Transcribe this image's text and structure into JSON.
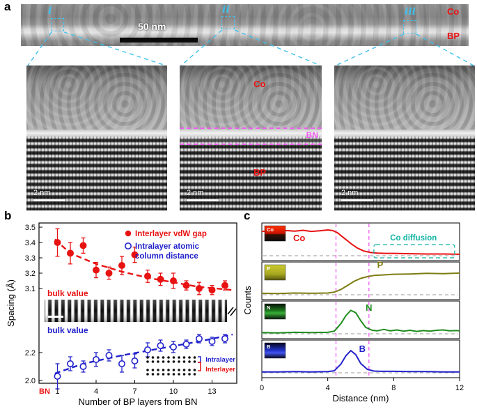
{
  "figure": {
    "panel_a_label": "a",
    "panel_b_label": "b",
    "panel_c_label": "c"
  },
  "panel_a": {
    "regions": {
      "r1": "i",
      "r2": "ii",
      "r3": "iii"
    },
    "strip": {
      "co": "Co",
      "bp": "BP",
      "scalebar": "50 nm"
    },
    "insets": {
      "scalebar": "2 nm",
      "mid_co": "Co",
      "mid_bn": "BN",
      "mid_bp": "BP"
    }
  },
  "chart_data": [
    {
      "type": "scatter",
      "title": "",
      "xlabel": "Number of BP layers from BN",
      "ylabel": "Spacing (Å)",
      "x_ticks": [
        1,
        4,
        7,
        10,
        13
      ],
      "x_extra_tick": "BN",
      "y_ticks_top": [
        3.5,
        3.4,
        3.3,
        3.2,
        3.1
      ],
      "y_ticks_bottom": [
        2.2,
        2.0
      ],
      "axis_break": true,
      "grid": false,
      "legend_position": "top-right",
      "series": [
        {
          "name": "Interlayer vdW gap",
          "color": "#e81212",
          "marker": "filled-circle",
          "x": [
            1,
            2,
            3,
            4,
            5,
            6,
            7,
            8,
            9,
            10,
            11,
            12,
            13,
            14
          ],
          "y": [
            3.4,
            3.33,
            3.38,
            3.22,
            3.2,
            3.25,
            3.32,
            3.18,
            3.16,
            3.15,
            3.12,
            3.1,
            3.09,
            3.12
          ],
          "yerr": [
            0.09,
            0.07,
            0.05,
            0.05,
            0.04,
            0.06,
            0.05,
            0.04,
            0.04,
            0.05,
            0.03,
            0.04,
            0.03,
            0.03
          ]
        },
        {
          "name": "Intralayer atomic column distance",
          "color": "#2222cc",
          "marker": "open-circle",
          "x": [
            1,
            2,
            3,
            4,
            5,
            6,
            7,
            8,
            9,
            10,
            11,
            12,
            13,
            14
          ],
          "y": [
            2.03,
            2.12,
            2.1,
            2.15,
            2.18,
            2.12,
            2.14,
            2.22,
            2.25,
            2.24,
            2.26,
            2.3,
            2.28,
            2.3
          ],
          "yerr": [
            0.09,
            0.05,
            0.04,
            0.05,
            0.04,
            0.06,
            0.05,
            0.05,
            0.04,
            0.04,
            0.03,
            0.03,
            0.03,
            0.03
          ]
        }
      ],
      "trend_red": [
        [
          0.8,
          3.42
        ],
        [
          2,
          3.33
        ],
        [
          4,
          3.26
        ],
        [
          6,
          3.21
        ],
        [
          8,
          3.17
        ],
        [
          10,
          3.14
        ],
        [
          12,
          3.11
        ],
        [
          14.6,
          3.09
        ]
      ],
      "trend_blue": [
        [
          0.8,
          2.05
        ],
        [
          3,
          2.12
        ],
        [
          6,
          2.18
        ],
        [
          9,
          2.23
        ],
        [
          12,
          2.28
        ],
        [
          14.6,
          2.33
        ]
      ],
      "bulk_red_label": "bulk value",
      "bulk_blue_label": "bulk value",
      "inset_labels": {
        "intralayer": "Intralayer",
        "interlayer": "Interlayer"
      }
    },
    {
      "type": "line",
      "title": "",
      "xlabel": "Distance (nm)",
      "ylabel": "Counts",
      "xlim": [
        0,
        12
      ],
      "x_ticks": [
        0,
        4,
        8,
        12
      ],
      "y_units": "normalized counts (no numeric ticks shown)",
      "guides_x": [
        4.5,
        6.5
      ],
      "guide_color": "#ee4fee",
      "panels": [
        {
          "element": "Co",
          "color": "#e81212",
          "annotation": "Co diffusion",
          "annotation_color": "#14b5a5",
          "x": [
            0,
            0.5,
            1,
            1.5,
            2,
            2.5,
            3,
            3.5,
            4,
            4.3,
            4.6,
            5,
            5.4,
            5.8,
            6.2,
            6.6,
            7,
            7.5,
            8,
            9,
            10,
            11,
            12
          ],
          "y": [
            0.83,
            0.85,
            0.82,
            0.86,
            0.84,
            0.87,
            0.83,
            0.85,
            0.88,
            0.86,
            0.78,
            0.6,
            0.42,
            0.26,
            0.16,
            0.11,
            0.09,
            0.08,
            0.08,
            0.07,
            0.06,
            0.06,
            0.05
          ]
        },
        {
          "element": "P",
          "color": "#7d7d12",
          "x": [
            0,
            1,
            2,
            3,
            4,
            4.4,
            4.8,
            5.2,
            5.6,
            6,
            6.4,
            6.8,
            7.5,
            8,
            9,
            10,
            11,
            12
          ],
          "y": [
            0.05,
            0.04,
            0.06,
            0.05,
            0.06,
            0.09,
            0.18,
            0.32,
            0.46,
            0.56,
            0.62,
            0.66,
            0.68,
            0.7,
            0.71,
            0.73,
            0.72,
            0.74
          ]
        },
        {
          "element": "N",
          "color": "#1e8c1e",
          "x": [
            0,
            1,
            2,
            3,
            4,
            4.4,
            4.8,
            5.1,
            5.4,
            5.7,
            6,
            6.3,
            6.7,
            7,
            7.4,
            7.8,
            8.2,
            8.6,
            9,
            9.4,
            9.8,
            10.2,
            10.6,
            11,
            11.4,
            11.8,
            12
          ],
          "y": [
            0.04,
            0.03,
            0.05,
            0.04,
            0.05,
            0.09,
            0.35,
            0.62,
            0.8,
            0.72,
            0.45,
            0.22,
            0.12,
            0.1,
            0.15,
            0.1,
            0.13,
            0.09,
            0.12,
            0.08,
            0.11,
            0.09,
            0.12,
            0.13,
            0.1,
            0.11,
            0.1
          ]
        },
        {
          "element": "B",
          "color": "#2222cc",
          "x": [
            0,
            1,
            2,
            3,
            4,
            4.4,
            4.8,
            5.1,
            5.4,
            5.7,
            6,
            6.4,
            6.8,
            7.2,
            8,
            9,
            10,
            11,
            12
          ],
          "y": [
            0.03,
            0.03,
            0.04,
            0.03,
            0.04,
            0.07,
            0.3,
            0.58,
            0.76,
            0.62,
            0.32,
            0.12,
            0.06,
            0.05,
            0.05,
            0.04,
            0.04,
            0.03,
            0.03
          ]
        }
      ]
    }
  ]
}
